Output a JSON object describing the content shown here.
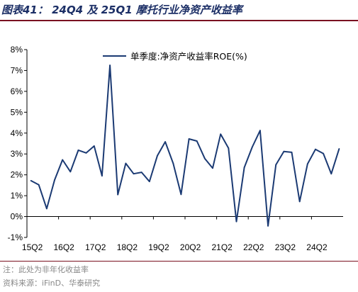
{
  "header": {
    "figure_title": "图表41：  24Q4 及 25Q1 摩托行业净资产收益率"
  },
  "footer": {
    "note": "注：此处为非年化收益率",
    "source": "资料来源：iFinD、华泰研究"
  },
  "colors": {
    "title": "#1c2f66",
    "rule": "#7a1020",
    "line": "#1b3a73",
    "footnote": "#888888"
  },
  "chart_data": {
    "type": "line",
    "title": "",
    "xlabel": "",
    "ylabel": "",
    "ylim": [
      -1,
      8
    ],
    "yticks": [
      "-1%",
      "0%",
      "1%",
      "2%",
      "3%",
      "4%",
      "5%",
      "6%",
      "7%",
      "8%"
    ],
    "xtick_labels": [
      "15Q2",
      "16Q2",
      "17Q2",
      "18Q2",
      "19Q2",
      "20Q2",
      "21Q2",
      "22Q2",
      "23Q2",
      "24Q2"
    ],
    "legend_position": "top-center",
    "grid": false,
    "x": [
      "15Q2",
      "15Q3",
      "15Q4",
      "16Q1",
      "16Q2",
      "16Q3",
      "16Q4",
      "17Q1",
      "17Q2",
      "17Q3",
      "17Q4",
      "18Q1",
      "18Q2",
      "18Q3",
      "18Q4",
      "19Q1",
      "19Q2",
      "19Q3",
      "19Q4",
      "20Q1",
      "20Q2",
      "20Q3",
      "20Q4",
      "21Q1",
      "21Q2",
      "21Q3",
      "21Q4",
      "22Q1",
      "22Q2",
      "22Q3",
      "22Q4",
      "23Q1",
      "23Q2",
      "23Q3",
      "23Q4",
      "24Q1",
      "24Q2",
      "24Q3",
      "24Q4",
      "25Q1"
    ],
    "series": [
      {
        "name": "单季度:净资产收益率ROE(%)",
        "values": [
          1.72,
          1.52,
          0.38,
          1.75,
          2.72,
          2.15,
          3.18,
          3.05,
          3.38,
          1.95,
          7.25,
          1.05,
          2.55,
          2.05,
          2.12,
          1.68,
          2.92,
          3.58,
          2.55,
          1.06,
          3.72,
          3.62,
          2.78,
          2.32,
          3.95,
          3.28,
          -0.24,
          2.35,
          3.33,
          4.12,
          -0.45,
          2.48,
          3.12,
          3.08,
          0.72,
          2.52,
          3.22,
          3.02,
          2.05,
          3.25
        ]
      }
    ]
  }
}
